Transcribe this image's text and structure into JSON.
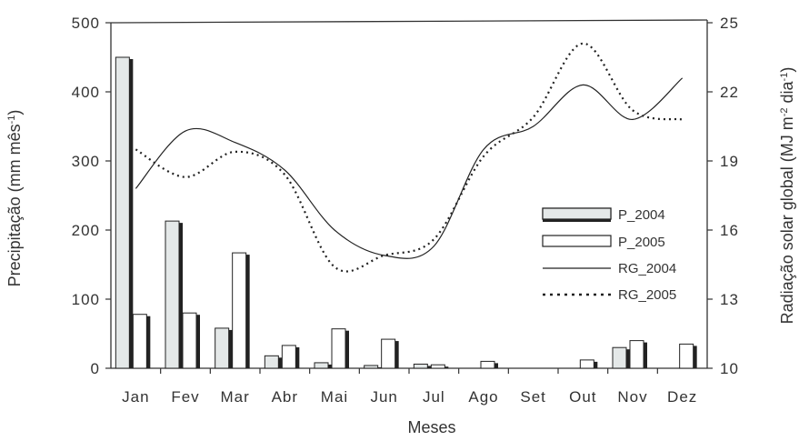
{
  "chart_data": {
    "type": "bar",
    "categories": [
      "Jan",
      "Fev",
      "Mar",
      "Abr",
      "Mai",
      "Jun",
      "Jul",
      "Ago",
      "Set",
      "Out",
      "Nov",
      "Dez"
    ],
    "xlabel": "Meses",
    "ylabel": "Precipitação (mm mês",
    "ylabel_sup": "-1",
    "ylabel_end": ")",
    "y2label_pre": "Radiação solar global (MJ m",
    "y2label_sup1": "-2",
    "y2label_mid": " dia",
    "y2label_sup2": "-1",
    "y2label_end": ")",
    "ylim": [
      0,
      500
    ],
    "yticks": [
      0,
      100,
      200,
      300,
      400,
      500
    ],
    "y2lim": [
      10,
      25
    ],
    "y2ticks": [
      10,
      13,
      16,
      19,
      22,
      25
    ],
    "grid": false,
    "legend_position": "right",
    "series": [
      {
        "name": "P_2004",
        "type": "bar",
        "axis": "left",
        "fill": "#e4e8e8",
        "values": [
          450,
          213,
          58,
          18,
          8,
          4,
          6,
          0,
          0,
          0,
          30,
          0
        ]
      },
      {
        "name": "P_2005",
        "type": "bar",
        "axis": "left",
        "fill": "#ffffff",
        "values": [
          78,
          80,
          167,
          33,
          57,
          42,
          5,
          10,
          0,
          12,
          40,
          35
        ]
      },
      {
        "name": "RG_2004",
        "type": "line",
        "axis": "right",
        "style": "solid",
        "values": [
          17.8,
          20.3,
          19.8,
          18.6,
          16.0,
          14.9,
          15.3,
          19.5,
          20.5,
          22.3,
          20.8,
          22.6
        ]
      },
      {
        "name": "RG_2005",
        "type": "line",
        "axis": "right",
        "style": "dotted",
        "values": [
          19.5,
          18.3,
          19.4,
          18.4,
          14.4,
          14.9,
          15.6,
          19.2,
          20.9,
          24.1,
          21.2,
          20.8
        ]
      }
    ],
    "colors": {
      "axis": "#333333",
      "bar_shadow": "#222222",
      "line": "#222222"
    }
  }
}
